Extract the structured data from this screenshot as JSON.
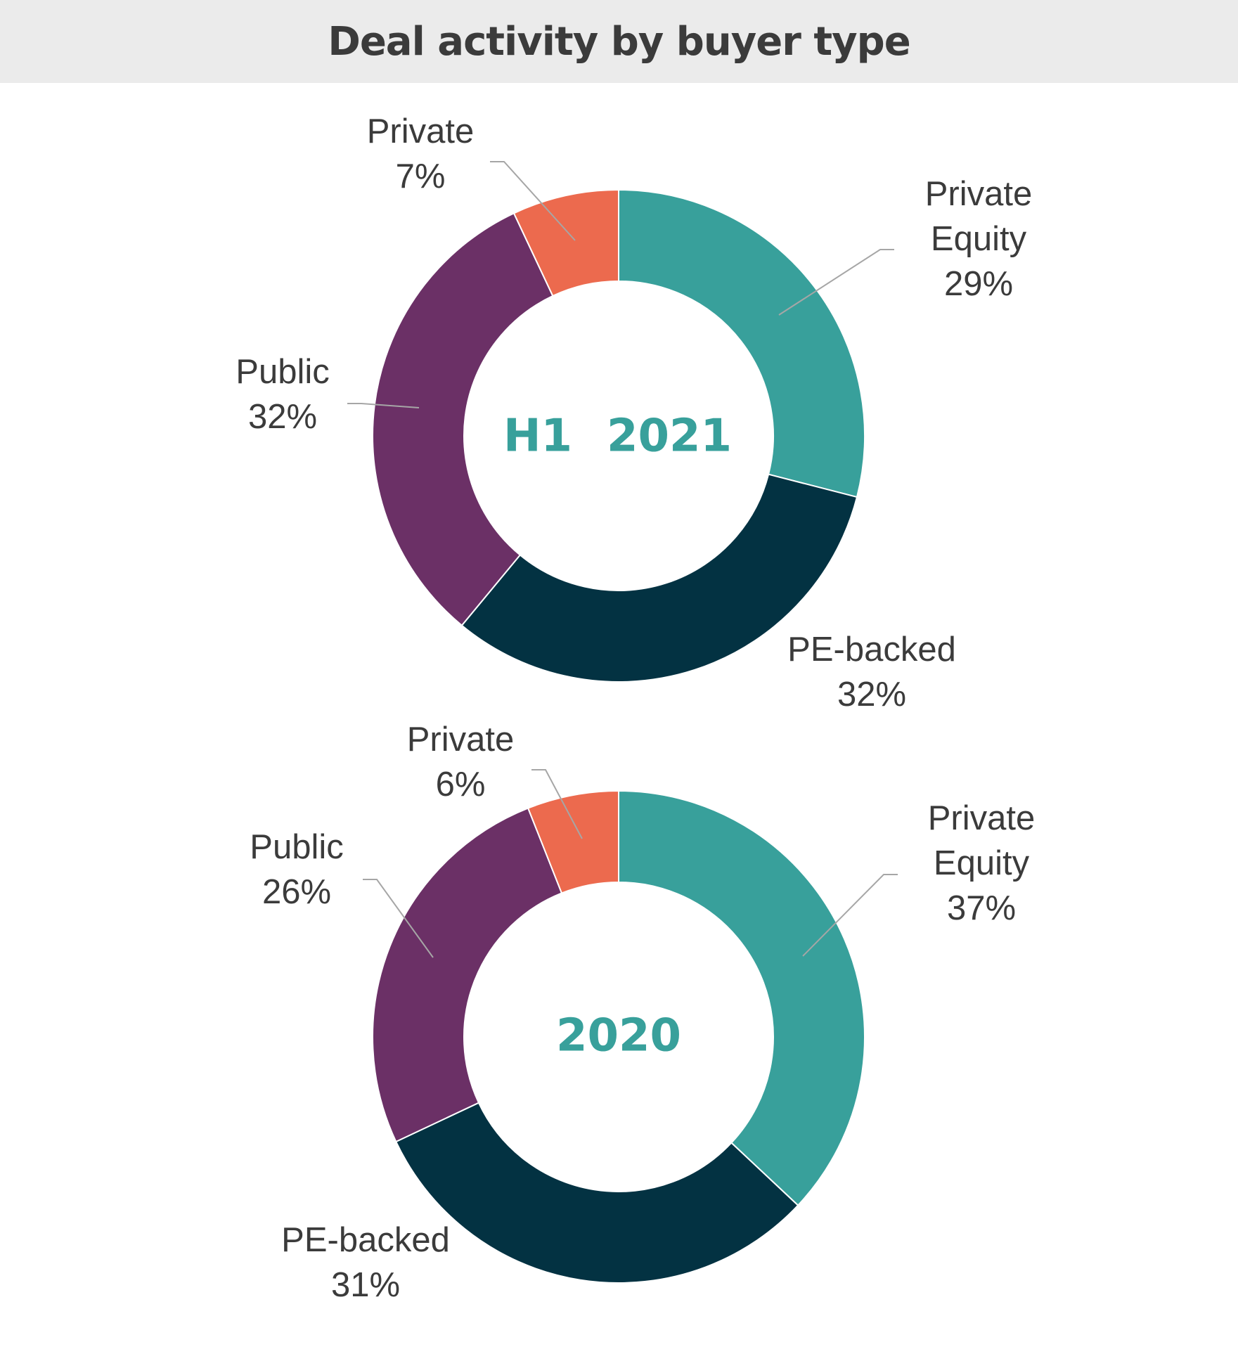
{
  "colors": {
    "private_equity": "#38a09b",
    "pe_backed": "#033242",
    "public": "#6b3066",
    "private": "#ec6a4e",
    "leader": "#a6a6a6"
  },
  "chart_data": {
    "title": "Deal activity by buyer type",
    "charts": [
      {
        "type": "pie",
        "center_label_parts": [
          "H1",
          "2021"
        ],
        "slices": [
          {
            "label_lines": [
              "Private",
              "Equity",
              "29%"
            ],
            "value": 29,
            "color_key": "private_equity"
          },
          {
            "label_lines": [
              "PE-backed",
              "32%"
            ],
            "value": 32,
            "color_key": "pe_backed"
          },
          {
            "label_lines": [
              "Public",
              "32%"
            ],
            "value": 32,
            "color_key": "public"
          },
          {
            "label_lines": [
              "Private",
              "7%"
            ],
            "value": 7,
            "color_key": "private"
          }
        ]
      },
      {
        "type": "pie",
        "center_label_parts": [
          "2020"
        ],
        "slices": [
          {
            "label_lines": [
              "Private",
              "Equity",
              "37%"
            ],
            "value": 37,
            "color_key": "private_equity"
          },
          {
            "label_lines": [
              "PE-backed",
              "31%"
            ],
            "value": 31,
            "color_key": "pe_backed"
          },
          {
            "label_lines": [
              "Public",
              "26%"
            ],
            "value": 26,
            "color_key": "public"
          },
          {
            "label_lines": [
              "Private",
              "6%"
            ],
            "value": 6,
            "color_key": "private"
          }
        ]
      }
    ]
  }
}
